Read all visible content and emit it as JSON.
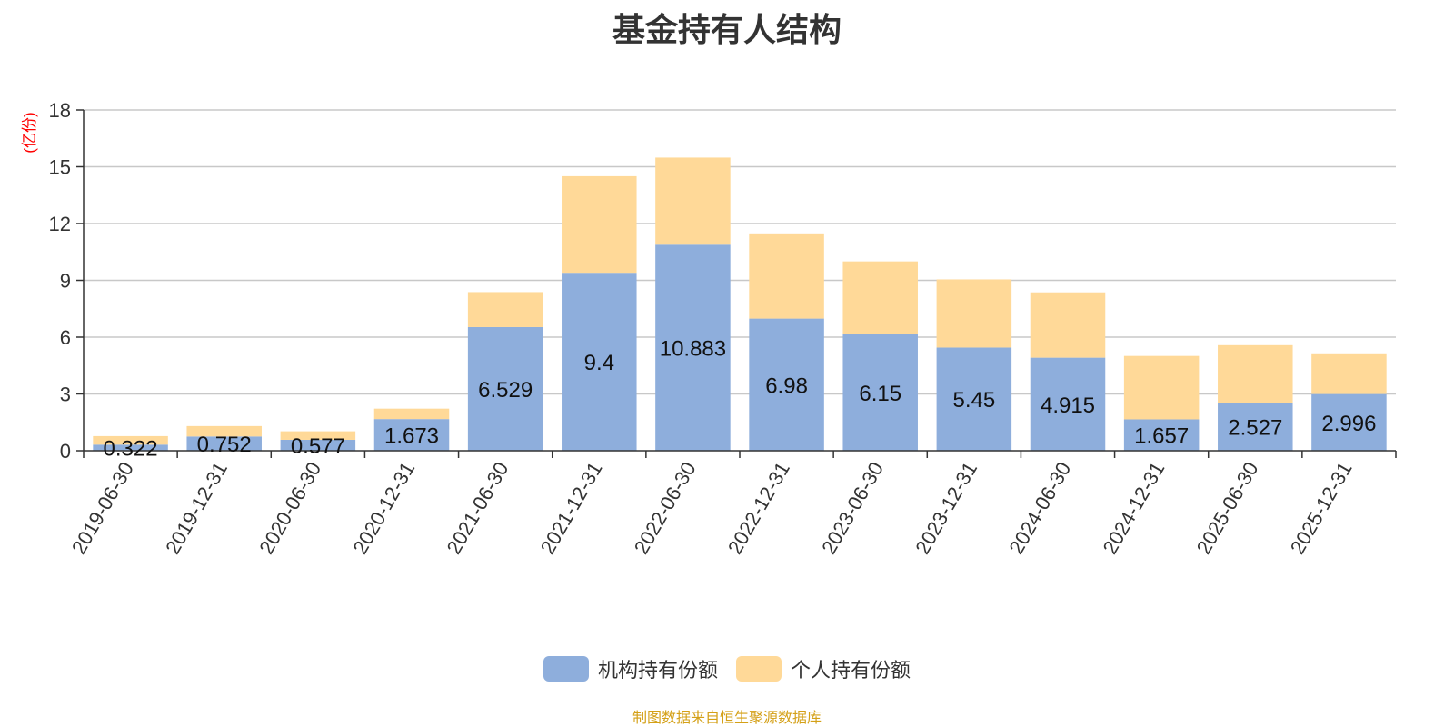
{
  "chart_data": {
    "type": "bar",
    "stacked": true,
    "title": "基金持有人结构",
    "ylabel": "(亿份)",
    "ylim": [
      0,
      18
    ],
    "yticks": [
      0,
      3,
      6,
      9,
      12,
      15,
      18
    ],
    "grid": true,
    "legend_position": "bottom-center",
    "categories": [
      "2019-06-30",
      "2019-12-31",
      "2020-06-30",
      "2020-12-31",
      "2021-06-30",
      "2021-12-31",
      "2022-06-30",
      "2022-12-31",
      "2023-06-30",
      "2023-12-31",
      "2024-06-30",
      "2024-12-31",
      "2025-06-30",
      "2025-12-31"
    ],
    "series": [
      {
        "name": "机构持有份额",
        "color": "#8eaedc",
        "values": [
          0.322,
          0.752,
          0.577,
          1.673,
          6.529,
          9.4,
          10.883,
          6.98,
          6.15,
          5.45,
          4.915,
          1.657,
          2.527,
          2.996
        ],
        "labels": [
          "0.322",
          "0.752",
          "0.577",
          "1.673",
          "6.529",
          "9.4",
          "10.883",
          "6.98",
          "6.15",
          "5.45",
          "4.915",
          "1.657",
          "2.527",
          "2.996"
        ]
      },
      {
        "name": "个人持有份额",
        "color": "#ffd998",
        "values": [
          0.45,
          0.55,
          0.45,
          0.55,
          1.85,
          5.1,
          4.6,
          4.5,
          3.85,
          3.6,
          3.45,
          3.35,
          3.05,
          2.15
        ]
      }
    ],
    "source": "制图数据来自恒生聚源数据库",
    "source_color": "#d4a017",
    "ylabel_color": "#ff0000"
  }
}
